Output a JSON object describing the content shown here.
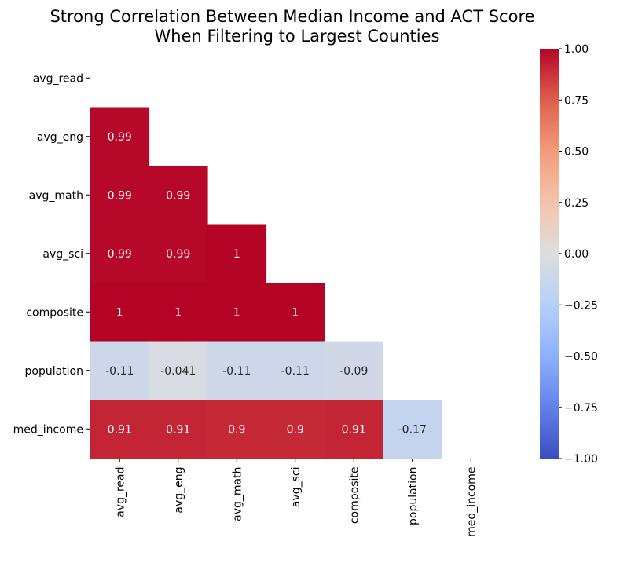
{
  "chart_data": {
    "type": "heatmap",
    "title_lines": [
      "Strong Correlation Between Median Income and ACT Score",
      "When Filtering to Largest Counties"
    ],
    "row_labels": [
      "avg_read",
      "avg_eng",
      "avg_math",
      "avg_sci",
      "composite",
      "population",
      "med_income"
    ],
    "col_labels": [
      "avg_read",
      "avg_eng",
      "avg_math",
      "avg_sci",
      "composite",
      "population",
      "med_income"
    ],
    "mask": "upper-triangle-including-diagonal",
    "cells": [
      {
        "row": 1,
        "col": 0,
        "value": 0.99,
        "label": "0.99"
      },
      {
        "row": 2,
        "col": 0,
        "value": 0.99,
        "label": "0.99"
      },
      {
        "row": 2,
        "col": 1,
        "value": 0.99,
        "label": "0.99"
      },
      {
        "row": 3,
        "col": 0,
        "value": 0.99,
        "label": "0.99"
      },
      {
        "row": 3,
        "col": 1,
        "value": 0.99,
        "label": "0.99"
      },
      {
        "row": 3,
        "col": 2,
        "value": 1.0,
        "label": "1"
      },
      {
        "row": 4,
        "col": 0,
        "value": 1.0,
        "label": "1"
      },
      {
        "row": 4,
        "col": 1,
        "value": 1.0,
        "label": "1"
      },
      {
        "row": 4,
        "col": 2,
        "value": 1.0,
        "label": "1"
      },
      {
        "row": 4,
        "col": 3,
        "value": 1.0,
        "label": "1"
      },
      {
        "row": 5,
        "col": 0,
        "value": -0.11,
        "label": "-0.11"
      },
      {
        "row": 5,
        "col": 1,
        "value": -0.041,
        "label": "-0.041"
      },
      {
        "row": 5,
        "col": 2,
        "value": -0.11,
        "label": "-0.11"
      },
      {
        "row": 5,
        "col": 3,
        "value": -0.11,
        "label": "-0.11"
      },
      {
        "row": 5,
        "col": 4,
        "value": -0.09,
        "label": "-0.09"
      },
      {
        "row": 6,
        "col": 0,
        "value": 0.91,
        "label": "0.91"
      },
      {
        "row": 6,
        "col": 1,
        "value": 0.91,
        "label": "0.91"
      },
      {
        "row": 6,
        "col": 2,
        "value": 0.9,
        "label": "0.9"
      },
      {
        "row": 6,
        "col": 3,
        "value": 0.9,
        "label": "0.9"
      },
      {
        "row": 6,
        "col": 4,
        "value": 0.91,
        "label": "0.91"
      },
      {
        "row": 6,
        "col": 5,
        "value": -0.17,
        "label": "-0.17"
      }
    ],
    "colorbar": {
      "colormap": "coolwarm",
      "vmin": -1.0,
      "vmax": 1.0,
      "ticks": [
        1.0,
        0.75,
        0.5,
        0.25,
        0.0,
        -0.25,
        -0.5,
        -0.75,
        -1.0
      ],
      "tick_labels": [
        "1.00",
        "0.75",
        "0.50",
        "0.25",
        "0.00",
        "−0.25",
        "−0.50",
        "−0.75",
        "−1.00"
      ]
    },
    "colors": {
      "text_light": "#ffffff",
      "text_dark": "#262626",
      "axis": "#000000"
    }
  }
}
